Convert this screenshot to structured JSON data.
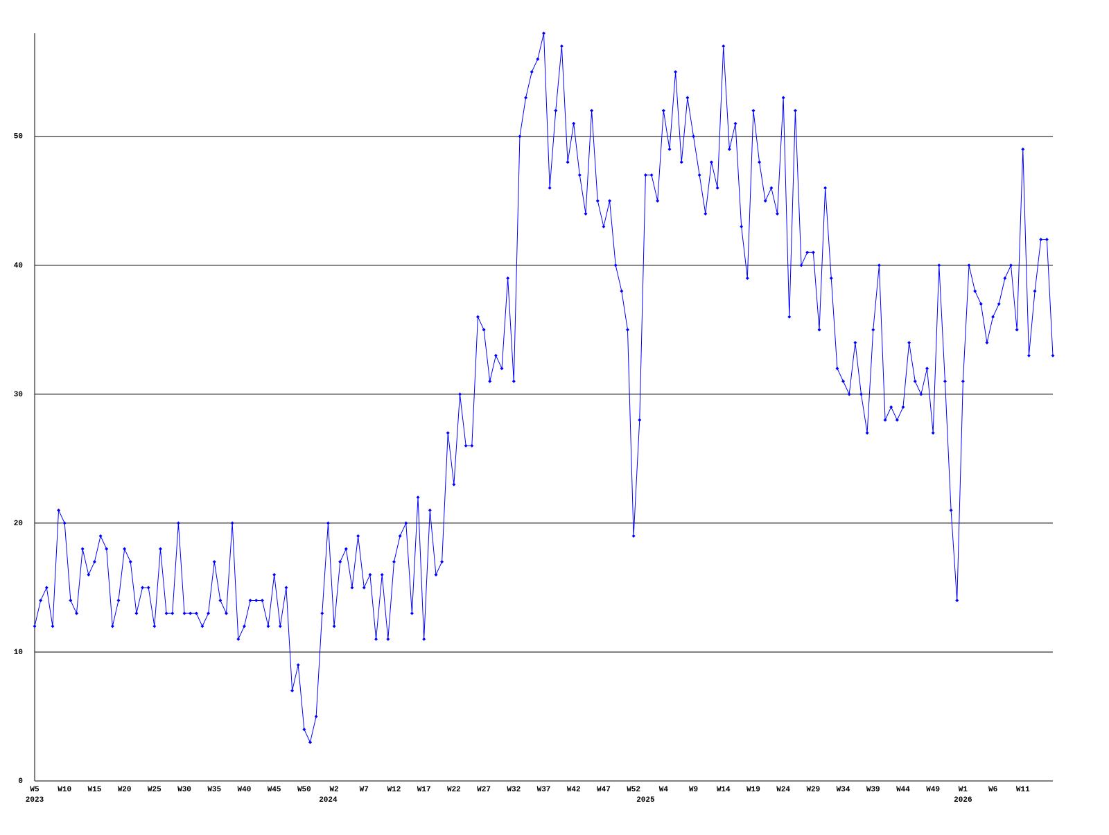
{
  "chart_data": {
    "type": "line",
    "categories": [
      "W5",
      null,
      null,
      null,
      null,
      "W10",
      null,
      null,
      null,
      null,
      "W15",
      null,
      null,
      null,
      null,
      "W20",
      null,
      null,
      null,
      null,
      "W25",
      null,
      null,
      null,
      null,
      "W30",
      null,
      null,
      null,
      null,
      "W35",
      null,
      null,
      null,
      null,
      "W40",
      null,
      null,
      null,
      null,
      "W45",
      null,
      null,
      null,
      null,
      "W50",
      null,
      null,
      null,
      null,
      "W2",
      null,
      null,
      null,
      null,
      "W7",
      null,
      null,
      null,
      null,
      "W12",
      null,
      null,
      null,
      null,
      "W17",
      null,
      null,
      null,
      null,
      "W22",
      null,
      null,
      null,
      null,
      "W27",
      null,
      null,
      null,
      null,
      "W32",
      null,
      null,
      null,
      null,
      "W37",
      null,
      null,
      null,
      null,
      "W42",
      null,
      null,
      null,
      null,
      "W47",
      null,
      null,
      null,
      null,
      "W52",
      null,
      null,
      null,
      null,
      "W4",
      null,
      null,
      null,
      null,
      "W9",
      null,
      null,
      null,
      null,
      "W14",
      null,
      null,
      null,
      null,
      "W19",
      null,
      null,
      null,
      null,
      "W24",
      null,
      null,
      null,
      null,
      "W29",
      null,
      null,
      null,
      null,
      "W34",
      null,
      null,
      null,
      null,
      "W39",
      null,
      null,
      null,
      null,
      "W44",
      null,
      null,
      null,
      null,
      "W49",
      null,
      null,
      null,
      null,
      "W1",
      null,
      null,
      null,
      null,
      "W6",
      null,
      null,
      null,
      null,
      "W11",
      null,
      null,
      null,
      null,
      null
    ],
    "year_labels": [
      "2023",
      null,
      null,
      null,
      null,
      null,
      null,
      null,
      null,
      null,
      null,
      null,
      null,
      null,
      null,
      null,
      null,
      null,
      null,
      null,
      null,
      null,
      null,
      null,
      null,
      null,
      null,
      null,
      null,
      null,
      null,
      null,
      null,
      null,
      null,
      null,
      null,
      null,
      null,
      null,
      null,
      null,
      null,
      null,
      null,
      null,
      null,
      null,
      null,
      "2024",
      null,
      null,
      null,
      null,
      null,
      null,
      null,
      null,
      null,
      null,
      null,
      null,
      null,
      null,
      null,
      null,
      null,
      null,
      null,
      null,
      null,
      null,
      null,
      null,
      null,
      null,
      null,
      null,
      null,
      null,
      null,
      null,
      null,
      null,
      null,
      null,
      null,
      null,
      null,
      null,
      null,
      null,
      null,
      null,
      null,
      null,
      null,
      null,
      null,
      null,
      null,
      null,
      "2025",
      null,
      null,
      null,
      null,
      null,
      null,
      null,
      null,
      null,
      null,
      null,
      null,
      null,
      null,
      null,
      null,
      null,
      null,
      null,
      null,
      null,
      null,
      null,
      null,
      null,
      null,
      null,
      null,
      null,
      null,
      null,
      null,
      null,
      null,
      null,
      null,
      null,
      null,
      null,
      null,
      null,
      null,
      null,
      null,
      null,
      null,
      null,
      null,
      null,
      null,
      null,
      null,
      "2026",
      null,
      null,
      null,
      null,
      null,
      null,
      null,
      null,
      null,
      null,
      null,
      null,
      null,
      null,
      null
    ],
    "values": [
      12,
      14,
      15,
      12,
      21,
      20,
      14,
      13,
      18,
      16,
      17,
      19,
      18,
      12,
      14,
      18,
      17,
      13,
      15,
      15,
      12,
      18,
      13,
      13,
      20,
      13,
      13,
      13,
      12,
      13,
      17,
      14,
      13,
      20,
      11,
      12,
      14,
      14,
      14,
      12,
      16,
      12,
      15,
      7,
      9,
      4,
      3,
      5,
      13,
      20,
      12,
      17,
      18,
      15,
      19,
      15,
      16,
      11,
      16,
      11,
      17,
      19,
      20,
      13,
      22,
      11,
      21,
      16,
      17,
      27,
      23,
      30,
      26,
      26,
      36,
      35,
      31,
      33,
      32,
      39,
      31,
      50,
      53,
      55,
      56,
      58,
      46,
      52,
      57,
      48,
      51,
      47,
      44,
      52,
      45,
      43,
      45,
      40,
      38,
      35,
      19,
      28,
      47,
      47,
      45,
      52,
      49,
      55,
      48,
      53,
      50,
      47,
      44,
      48,
      46,
      57,
      49,
      51,
      43,
      39,
      52,
      48,
      45,
      46,
      44,
      53,
      36,
      52,
      40,
      41,
      41,
      35,
      46,
      39,
      32,
      31,
      30,
      34,
      30,
      27,
      35,
      40,
      28,
      29,
      28,
      29,
      34,
      31,
      30,
      32,
      27,
      40,
      31,
      21,
      14,
      31,
      40,
      38,
      37,
      34,
      36,
      37,
      39,
      40,
      35,
      49,
      33,
      38,
      42,
      42,
      33
    ],
    "color": "#0000ff",
    "ylim": [
      0,
      58
    ],
    "yticks": [
      0,
      10,
      20,
      30,
      40,
      50
    ],
    "grid": true
  }
}
